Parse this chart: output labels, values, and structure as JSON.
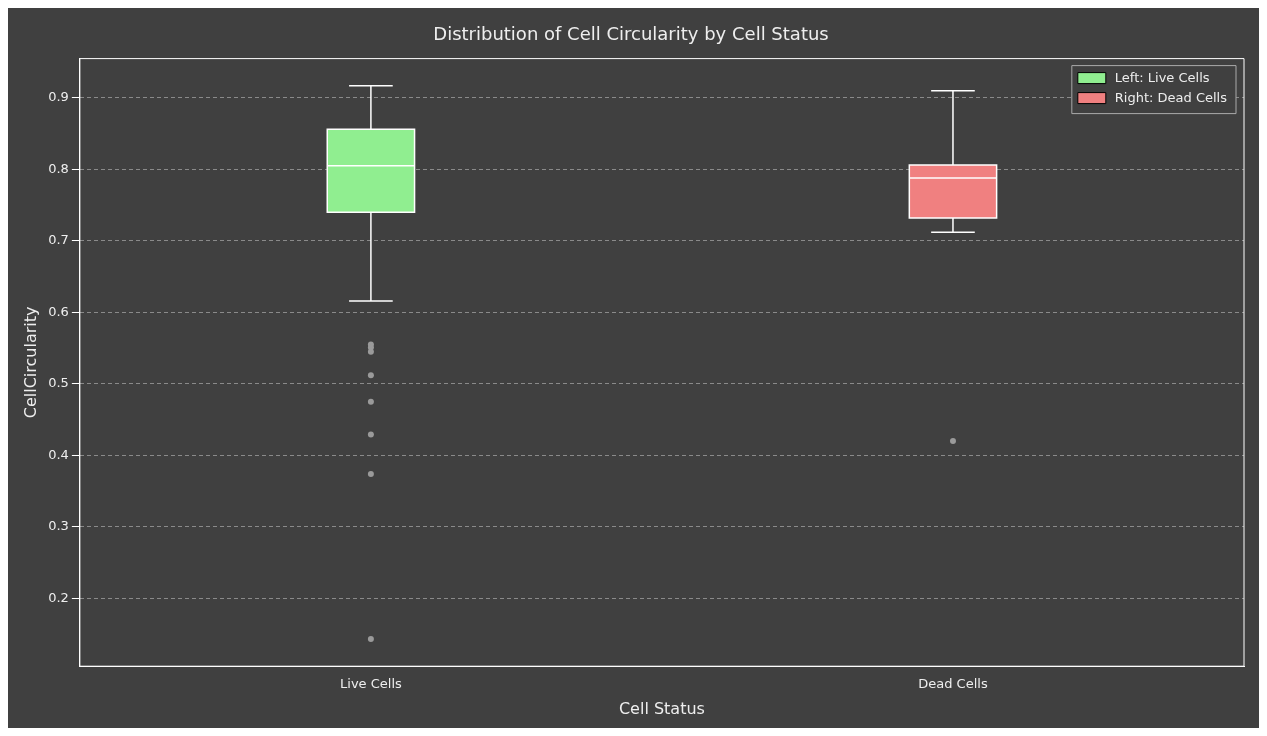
{
  "chart_data": {
    "type": "box",
    "title": "Distribution of Cell Circularity by Cell Status",
    "xlabel": "Cell Status",
    "ylabel": "CellCircularity",
    "categories": [
      "Live Cells",
      "Dead Cells"
    ],
    "series": [
      {
        "name": "Left: Live Cells",
        "color": "#90ee90",
        "boxes": [
          {
            "low": 0.616,
            "q1": 0.74,
            "median": 0.805,
            "q3": 0.856,
            "high": 0.917,
            "outliers": [
              0.555,
              0.551,
              0.545,
              0.512,
              0.475,
              0.429,
              0.374,
              0.143
            ]
          },
          null
        ]
      },
      {
        "name": "Right: Dead Cells",
        "color": "#f08080",
        "boxes": [
          null,
          {
            "low": 0.712,
            "q1": 0.732,
            "median": 0.788,
            "q3": 0.806,
            "high": 0.91,
            "outliers": [
              0.42
            ]
          }
        ]
      }
    ],
    "ylim": [
      0.105,
      0.955
    ],
    "yticks": [
      0.2,
      0.3,
      0.4,
      0.5,
      0.6,
      0.7,
      0.8,
      0.9
    ],
    "grid": "y",
    "legend": "top right"
  }
}
